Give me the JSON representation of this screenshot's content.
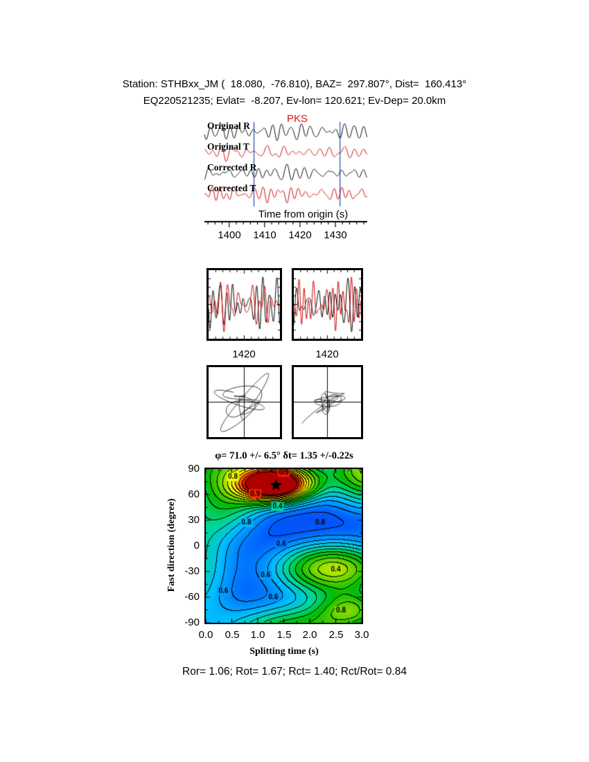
{
  "page": {
    "background": "#ffffff"
  },
  "header": {
    "line1": "Station: STHBxx_JM (  18.080,  -76.810), BAZ=  297.807°, Dist=  160.413°",
    "line2": "EQ220521235; Evlat=  -8.207, Ev-lon= 120.621; Ev-Dep= 20.0km"
  },
  "footer": {
    "text": "Ror= 1.06; Rot= 1.67; Rct= 1.40; Rct/Rot= 0.84"
  },
  "chart_data": [
    {
      "id": "waveforms",
      "type": "line",
      "phase": "PKS",
      "phase_color": "#dd1111",
      "xlabel": "Time from origin (s)",
      "x_range": [
        1393,
        1439
      ],
      "xticks": [
        "1400",
        "1410",
        "1420",
        "1430"
      ],
      "window": [
        1407,
        1431.3
      ],
      "window_color": "#4466bb",
      "traces": [
        {
          "label": "Original R",
          "color": "#000000",
          "seed": 11
        },
        {
          "label": "Original T",
          "color": "#cc0000",
          "seed": 22
        },
        {
          "label": "Corrected R",
          "color": "#000000",
          "seed": 33
        },
        {
          "label": "Corrected T",
          "color": "#cc0000",
          "seed": 44
        }
      ]
    },
    {
      "id": "window-zoom",
      "type": "line",
      "colors": [
        "#000000",
        "#cc0000"
      ],
      "panels": [
        {
          "tick": "1420",
          "seeds": [
            11,
            22
          ],
          "desc": "original R and T in analysis window"
        },
        {
          "tick": "1420",
          "seeds": [
            33,
            44
          ],
          "desc": "corrected R and T in analysis window"
        }
      ]
    },
    {
      "id": "particle-motion",
      "type": "scatter",
      "panels": [
        {
          "seeds": [
            11,
            22
          ],
          "correlated": false,
          "desc": "original particle motion"
        },
        {
          "seeds": [
            33,
            44
          ],
          "correlated": true,
          "desc": "corrected particle motion"
        }
      ]
    },
    {
      "id": "splitting-map",
      "type": "heatmap",
      "title": "φ= 71.0 +/- 6.5°  δt= 1.35 +/-0.22s",
      "xlabel": "Splitting time (s)",
      "ylabel": "Fast direction (degree)",
      "x_range": [
        0,
        3
      ],
      "y_range": [
        -90,
        90
      ],
      "xticks": [
        "0.0",
        "0.5",
        "1.0",
        "1.5",
        "2.0",
        "2.5",
        "3.0"
      ],
      "yticks": [
        "90",
        "60",
        "30",
        "0",
        "-30",
        "-60",
        "-90"
      ],
      "best": {
        "phi": 71.0,
        "phi_err": 6.5,
        "dt": 1.35,
        "dt_err": 0.22
      },
      "base": 0.18,
      "contour_interval": 0.05,
      "gaussians": [
        {
          "a": 0.85,
          "x": 1.35,
          "y": 71,
          "sx": 0.5,
          "sy": 14
        },
        {
          "a": 0.42,
          "x": 0.8,
          "y": 97,
          "sx": 1.1,
          "sy": 28
        },
        {
          "a": 0.5,
          "x": 3.2,
          "y": 88,
          "sx": 0.55,
          "sy": 30
        },
        {
          "a": 0.55,
          "x": 2.45,
          "y": -27,
          "sx": 0.8,
          "sy": 22
        },
        {
          "a": 0.42,
          "x": 1.7,
          "y": -100,
          "sx": 0.95,
          "sy": 22
        },
        {
          "a": 0.35,
          "x": 2.85,
          "y": -75,
          "sx": 0.5,
          "sy": 16
        },
        {
          "a": 0.28,
          "x": -0.2,
          "y": -20,
          "sx": 0.5,
          "sy": 55
        },
        {
          "a": 0.22,
          "x": 0.45,
          "y": 45,
          "sx": 0.5,
          "sy": 25
        }
      ],
      "cmap_stops": [
        [
          0.0,
          [
            18,
            18,
            165
          ]
        ],
        [
          0.25,
          [
            0,
            90,
            255
          ]
        ],
        [
          0.38,
          [
            0,
            190,
            255
          ]
        ],
        [
          0.48,
          [
            0,
            215,
            150
          ]
        ],
        [
          0.58,
          [
            0,
            190,
            0
          ]
        ],
        [
          0.7,
          [
            140,
            220,
            0
          ]
        ],
        [
          0.8,
          [
            255,
            255,
            0
          ]
        ],
        [
          0.88,
          [
            255,
            150,
            0
          ]
        ],
        [
          0.95,
          [
            255,
            40,
            0
          ]
        ],
        [
          1.0,
          [
            175,
            0,
            0
          ]
        ]
      ],
      "labels": [
        {
          "x": 0.52,
          "y": 81,
          "v": "0.8"
        },
        {
          "x": 1.5,
          "y": 86,
          "v": "0.9"
        },
        {
          "x": 0.95,
          "y": 61,
          "v": "0.9"
        },
        {
          "x": 1.38,
          "y": 46,
          "v": "0.4"
        },
        {
          "x": 0.78,
          "y": 27,
          "v": "0.8"
        },
        {
          "x": 2.2,
          "y": 27,
          "v": "0.8"
        },
        {
          "x": 1.45,
          "y": 2,
          "v": "0.6"
        },
        {
          "x": 1.15,
          "y": -34,
          "v": "0.6"
        },
        {
          "x": 2.5,
          "y": -28,
          "v": "0.4"
        },
        {
          "x": 0.34,
          "y": -53,
          "v": "0.6"
        },
        {
          "x": 1.3,
          "y": -60,
          "v": "0.6"
        },
        {
          "x": 2.6,
          "y": -76,
          "v": "0.8"
        }
      ]
    }
  ]
}
